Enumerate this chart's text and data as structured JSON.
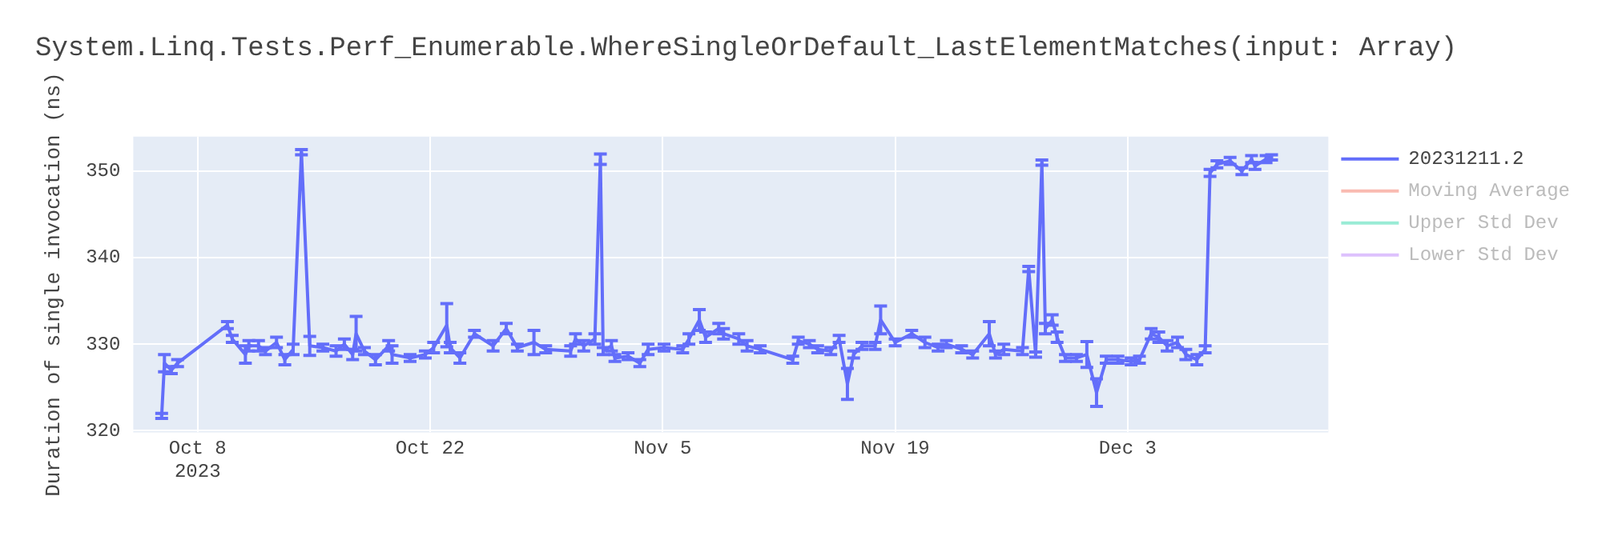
{
  "chart_data": {
    "type": "line",
    "title": "System.Linq.Tests.Perf_Enumerable.WhereSingleOrDefault_LastElementMatches(input: Array)",
    "ylabel": "Duration of single invocation (ns)",
    "x": [
      "2023-10-05T20:00",
      "2023-10-06T00:00",
      "2023-10-06T10:00",
      "2023-10-06T19:00",
      "2023-10-09T19:00",
      "2023-10-10T02:00",
      "2023-10-10T21:00",
      "2023-10-11T02:00",
      "2023-10-11T16:00",
      "2023-10-12T02:00",
      "2023-10-12T18:00",
      "2023-10-13T06:00",
      "2023-10-13T18:00",
      "2023-10-14T06:00",
      "2023-10-14T18:00",
      "2023-10-15T13:00",
      "2023-10-16T08:00",
      "2023-10-16T20:00",
      "2023-10-17T08:00",
      "2023-10-17T13:00",
      "2023-10-18T01:00",
      "2023-10-18T17:00",
      "2023-10-19T12:00",
      "2023-10-19T17:00",
      "2023-10-20T19:00",
      "2023-10-21T17:00",
      "2023-10-22T05:00",
      "2023-10-23T00:00",
      "2023-10-23T05:00",
      "2023-10-23T19:00",
      "2023-10-24T16:00",
      "2023-10-25T19:00",
      "2023-10-26T14:00",
      "2023-10-27T06:00",
      "2023-10-28T06:00",
      "2023-10-28T23:00",
      "2023-10-30T11:00",
      "2023-10-30T18:00",
      "2023-10-31T06:00",
      "2023-10-31T22:00",
      "2023-11-01T06:00",
      "2023-11-01T10:00",
      "2023-11-01T22:00",
      "2023-11-02T03:00",
      "2023-11-02T22:00",
      "2023-11-03T15:00",
      "2023-11-04T03:00",
      "2023-11-05T02:00",
      "2023-11-06T05:00",
      "2023-11-06T14:00",
      "2023-11-07T05:00",
      "2023-11-07T14:00",
      "2023-11-08T09:00",
      "2023-11-08T16:00",
      "2023-11-09T14:00",
      "2023-11-10T02:00",
      "2023-11-10T21:00",
      "2023-11-12T20:00",
      "2023-11-13T04:00",
      "2023-11-13T20:00",
      "2023-11-14T08:00",
      "2023-11-15T03:00",
      "2023-11-15T15:00",
      "2023-11-16T03:00",
      "2023-11-16T12:00",
      "2023-11-17T00:00",
      "2023-11-17T19:00",
      "2023-11-18T03:00",
      "2023-11-19T00:00",
      "2023-11-20T00:00",
      "2023-11-20T19:00",
      "2023-11-21T14:00",
      "2023-11-22T02:00",
      "2023-11-23T00:00",
      "2023-11-23T16:00",
      "2023-11-24T16:00",
      "2023-11-25T01:00",
      "2023-11-25T13:00",
      "2023-11-26T16:00",
      "2023-11-27T01:00",
      "2023-11-27T11:00",
      "2023-11-27T20:00",
      "2023-11-28T01:00",
      "2023-11-28T11:00",
      "2023-11-28T18:00",
      "2023-11-29T06:00",
      "2023-11-29T22:00",
      "2023-11-30T13:00",
      "2023-12-01T03:00",
      "2023-12-01T17:00",
      "2023-12-02T10:00",
      "2023-12-03T05:00",
      "2023-12-03T17:00",
      "2023-12-04T10:00",
      "2023-12-04T21:00",
      "2023-12-05T09:00",
      "2023-12-06T00:00",
      "2023-12-06T12:00",
      "2023-12-07T04:00",
      "2023-12-07T16:00",
      "2023-12-07T23:00",
      "2023-12-08T09:00",
      "2023-12-09T04:00",
      "2023-12-09T21:00",
      "2023-12-10T11:00",
      "2023-12-10T16:00",
      "2023-12-11T08:00",
      "2023-12-11T16:00"
    ],
    "series": [
      {
        "name": "20231211.2",
        "color": "#636efa",
        "values": [
          321.7,
          327.8,
          327,
          327.8,
          332.2,
          330.6,
          328.8,
          329.8,
          329.8,
          329.2,
          330.2,
          328.2,
          329.4,
          352.2,
          329.8,
          329.6,
          329.2,
          330,
          328.8,
          331.2,
          329.2,
          328.2,
          329.8,
          328.8,
          328.4,
          328.8,
          329.6,
          332.2,
          329.6,
          328.4,
          331.2,
          329.8,
          331.8,
          329.6,
          330.2,
          329.4,
          329.2,
          330.6,
          329.8,
          330.6,
          351.4,
          329.2,
          329.8,
          328.4,
          328.6,
          327.8,
          329.4,
          329.6,
          329.4,
          330.6,
          332.8,
          330.8,
          331.8,
          331.2,
          330.6,
          329.8,
          329.4,
          328.2,
          330.4,
          330,
          329.4,
          329.2,
          330.6,
          325.4,
          328.8,
          329.8,
          329.8,
          332.8,
          330.2,
          331.2,
          330.2,
          329.6,
          330,
          329.4,
          328.8,
          331.2,
          328.8,
          329.4,
          329.2,
          338.7,
          328.8,
          351,
          331.8,
          332.8,
          330.8,
          328.4,
          328.4,
          328.8,
          324.4,
          328.2,
          328.2,
          328,
          328.2,
          331.2,
          330.8,
          329.8,
          330.2,
          328.8,
          328.2,
          329.4,
          349.8,
          350.8,
          351.2,
          350,
          351.4,
          350.6,
          351.4,
          351.6
        ],
        "errors": [
          0.3,
          1,
          0.4,
          0.4,
          0.4,
          0.4,
          1,
          0.6,
          0.6,
          0.4,
          0.6,
          0.6,
          0.6,
          0.3,
          1.1,
          0.4,
          0.6,
          0.6,
          0.6,
          2,
          0.4,
          0.6,
          0.6,
          1,
          0.4,
          0.4,
          0.6,
          2.5,
          0.6,
          0.6,
          0.4,
          0.6,
          0.6,
          0.4,
          1.4,
          0.4,
          0.6,
          0.6,
          0.6,
          0.6,
          0.6,
          0.4,
          0.6,
          0.4,
          0.4,
          0.4,
          0.6,
          0.4,
          0.4,
          0.6,
          1.2,
          0.6,
          0.6,
          0.6,
          0.6,
          0.6,
          0.4,
          0.4,
          0.4,
          0.4,
          0.4,
          0.4,
          0.4,
          1.8,
          0.4,
          0.4,
          0.4,
          1.6,
          0.4,
          0.4,
          0.6,
          0.4,
          0.4,
          0.4,
          0.4,
          1.4,
          0.4,
          0.6,
          0.4,
          0.3,
          0.3,
          0.3,
          0.6,
          0.6,
          0.6,
          0.4,
          0.4,
          1.5,
          1.6,
          0.4,
          0.4,
          0.4,
          0.4,
          0.6,
          0.6,
          0.6,
          0.6,
          0.6,
          0.6,
          0.4,
          0.4,
          0.4,
          0.4,
          0.4,
          0.4,
          0.4,
          0.4,
          0.3
        ]
      },
      {
        "name": "Moving Average",
        "color": "#ef553b",
        "values": [
          null,
          null,
          null,
          null,
          null,
          null,
          null,
          null,
          null,
          null,
          null,
          null,
          null,
          null,
          null,
          null,
          null,
          null,
          null,
          null,
          null,
          null,
          null,
          null,
          null,
          null,
          null,
          null,
          null,
          null,
          null,
          null,
          null,
          null,
          null,
          null,
          null,
          null,
          null,
          null,
          null,
          null,
          null,
          null,
          null,
          null,
          null,
          null,
          null,
          null,
          null,
          null,
          null,
          null,
          null,
          null,
          null,
          null,
          null,
          null,
          null,
          null,
          null,
          null,
          null,
          null,
          null,
          null,
          null,
          null,
          null,
          null,
          null,
          null,
          null,
          null,
          null,
          null,
          null,
          null,
          null,
          null,
          null,
          null,
          null,
          null,
          null,
          null,
          null,
          null,
          null,
          null,
          null,
          null,
          null,
          null,
          null,
          null,
          null,
          null,
          null,
          null,
          null,
          null,
          null,
          null,
          null,
          null
        ]
      },
      {
        "name": "Upper Std Dev",
        "color": "#00cc96",
        "values": [
          null,
          null,
          null,
          null,
          null,
          null,
          null,
          null,
          null,
          null,
          null,
          null,
          null,
          null,
          null,
          null,
          null,
          null,
          null,
          null,
          null,
          null,
          null,
          null,
          null,
          null,
          null,
          null,
          null,
          null,
          null,
          null,
          null,
          null,
          null,
          null,
          null,
          null,
          null,
          null,
          null,
          null,
          null,
          null,
          null,
          null,
          null,
          null,
          null,
          null,
          null,
          null,
          null,
          null,
          null,
          null,
          null,
          null,
          null,
          null,
          null,
          null,
          null,
          null,
          null,
          null,
          null,
          null,
          null,
          null,
          null,
          null,
          null,
          null,
          null,
          null,
          null,
          null,
          null,
          null,
          null,
          null,
          null,
          null,
          null,
          null,
          null,
          null,
          null,
          null,
          null,
          null,
          null,
          null,
          null,
          null,
          null,
          null,
          null,
          null,
          null,
          null,
          null,
          null,
          null,
          null,
          null,
          null
        ]
      },
      {
        "name": "Lower Std Dev",
        "color": "#ab63fa",
        "values": [
          null,
          null,
          null,
          null,
          null,
          null,
          null,
          null,
          null,
          null,
          null,
          null,
          null,
          null,
          null,
          null,
          null,
          null,
          null,
          null,
          null,
          null,
          null,
          null,
          null,
          null,
          null,
          null,
          null,
          null,
          null,
          null,
          null,
          null,
          null,
          null,
          null,
          null,
          null,
          null,
          null,
          null,
          null,
          null,
          null,
          null,
          null,
          null,
          null,
          null,
          null,
          null,
          null,
          null,
          null,
          null,
          null,
          null,
          null,
          null,
          null,
          null,
          null,
          null,
          null,
          null,
          null,
          null,
          null,
          null,
          null,
          null,
          null,
          null,
          null,
          null,
          null,
          null,
          null,
          null,
          null,
          null,
          null,
          null,
          null,
          null,
          null,
          null,
          null,
          null,
          null,
          null,
          null,
          null,
          null,
          null,
          null,
          null,
          null,
          null,
          null,
          null,
          null,
          null,
          null,
          null,
          null,
          null
        ]
      }
    ],
    "xlim": [
      "2023-10-04T03:00",
      "2023-12-15T02:00"
    ],
    "xticks": [
      {
        "value": "2023-10-08",
        "label": "Oct 8\n2023"
      },
      {
        "value": "2023-10-22",
        "label": "Oct 22"
      },
      {
        "value": "2023-11-05",
        "label": "Nov 5"
      },
      {
        "value": "2023-11-19",
        "label": "Nov 19"
      },
      {
        "value": "2023-12-03",
        "label": "Dec 3"
      }
    ],
    "ylim": [
      319.8,
      354
    ],
    "yticks": [
      320,
      330,
      340,
      350
    ],
    "grid": true,
    "legend": "right"
  }
}
